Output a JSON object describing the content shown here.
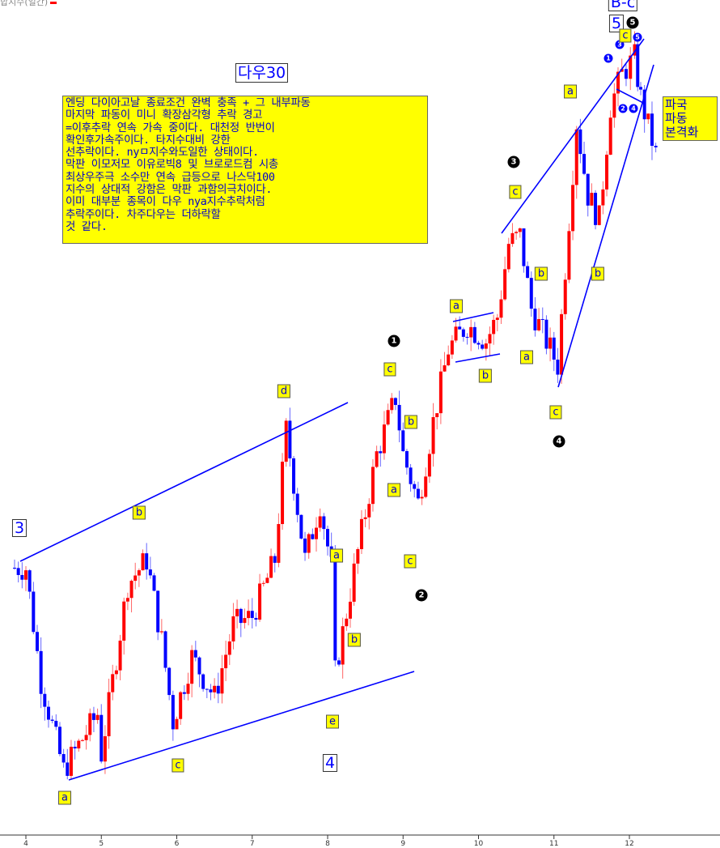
{
  "header": {
    "series_label": "합지수(일간)"
  },
  "title": "다우30",
  "note": "엔딩 다이아고날 종료조건 완벽 충족 + 그 내부파동\n마지막 파동이 미니 확장삼각형 추락 경고\n=이후추락 연속 가속 중이다. 대천정 반번이\n확인후가속주이다. 타지수대비 강한\n선추락이다. nyㅁ지수와도일한 상태이다.\n막판 이모저모 이유로빅8 및 브로로드컴 시총\n최상우주극 소수만 연속 급등으로 나스닥100\n지수의 상대적 강함은 막판 과함의극치이다.\n이미 대부분 종목이 다우 nya지수추락처럼\n추락주이다. 차주다우는 더하락할\n것 같다.",
  "side_note": "파국\n파동\n본격화",
  "colors": {
    "up": "#ff0000",
    "down": "#0000ff",
    "trendline": "#0000ff",
    "label_bg": "#ffff00"
  },
  "wave_labels": {
    "big": [
      "3",
      "4",
      "5",
      "B-c"
    ],
    "black": [
      "1",
      "2",
      "3",
      "4",
      "5"
    ],
    "blue_small": [
      "1",
      "3",
      "5",
      "2",
      "4"
    ],
    "yellow": [
      "a",
      "c",
      "b",
      "d",
      "e",
      "a",
      "b",
      "c",
      "a",
      "b",
      "c",
      "a",
      "b",
      "c",
      "b",
      "a",
      "a",
      "b",
      "c",
      "c"
    ]
  },
  "chart_data": {
    "type": "candlestick",
    "title": "다우30",
    "x_ticks": [
      "4",
      "5",
      "6",
      "7",
      "8",
      "9",
      "10",
      "11",
      "12"
    ],
    "x_unit": "month",
    "y_axis_shown": false,
    "grid": false,
    "trend_waypoints": [
      [
        3.8,
        33
      ],
      [
        4.0,
        33
      ],
      [
        4.2,
        19
      ],
      [
        4.5,
        8
      ],
      [
        4.95,
        15
      ],
      [
        5.0,
        10
      ],
      [
        5.35,
        31
      ],
      [
        5.6,
        34
      ],
      [
        5.8,
        24
      ],
      [
        5.95,
        14
      ],
      [
        6.2,
        22
      ],
      [
        6.5,
        17
      ],
      [
        6.75,
        26
      ],
      [
        7.0,
        27
      ],
      [
        7.3,
        34
      ],
      [
        7.45,
        50
      ],
      [
        7.7,
        34
      ],
      [
        7.9,
        41
      ],
      [
        8.05,
        33
      ],
      [
        8.1,
        20
      ],
      [
        8.4,
        35
      ],
      [
        8.65,
        47
      ],
      [
        8.9,
        54
      ],
      [
        9.0,
        47
      ],
      [
        9.2,
        41
      ],
      [
        9.4,
        51
      ],
      [
        9.6,
        60
      ],
      [
        9.85,
        63
      ],
      [
        10.1,
        61
      ],
      [
        10.25,
        64
      ],
      [
        10.4,
        73
      ],
      [
        10.55,
        74
      ],
      [
        10.7,
        65
      ],
      [
        10.85,
        62
      ],
      [
        11.05,
        58
      ],
      [
        11.15,
        70
      ],
      [
        11.3,
        88
      ],
      [
        11.45,
        79
      ],
      [
        11.6,
        76
      ],
      [
        11.75,
        90
      ],
      [
        11.9,
        94
      ],
      [
        12.07,
        96
      ],
      [
        12.15,
        91
      ],
      [
        12.35,
        84
      ]
    ]
  }
}
